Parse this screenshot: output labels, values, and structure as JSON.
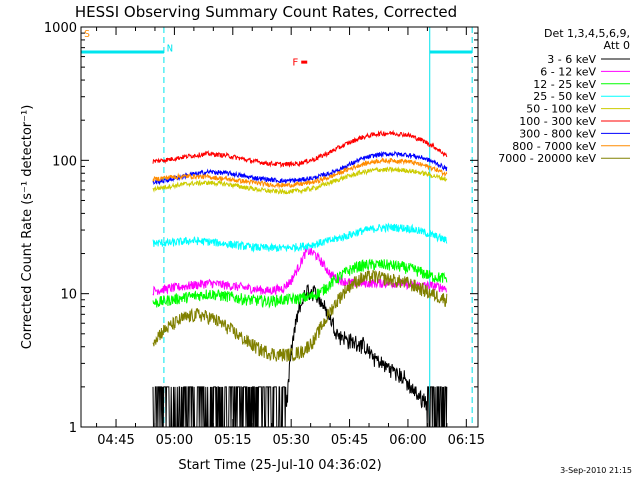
{
  "chart_data": {
    "type": "line",
    "title": "HESSI Observing Summary Count Rates, Corrected",
    "xlabel": "Start Time (25-Jul-10 04:36:02)",
    "ylabel": "Corrected Count Rate (s⁻¹ detector⁻¹)",
    "y_scale": "log",
    "ylim": [
      1,
      1000
    ],
    "xlim_minutes": [
      36.0,
      138.0
    ],
    "x_tick_labels": [
      "04:45",
      "05:00",
      "05:15",
      "05:30",
      "05:45",
      "06:00",
      "06:15"
    ],
    "x_tick_minutes": [
      45,
      60,
      75,
      90,
      105,
      120,
      135
    ],
    "y_tick_labels": [
      "1",
      "10",
      "100",
      "1000"
    ],
    "y_tick_values": [
      1,
      10,
      100,
      1000
    ],
    "data_start_minute": 54.5,
    "data_end_minute": 130.0,
    "legend_header": [
      "Det 1,3,4,5,6,9,",
      "Att 0"
    ],
    "legend_placement": "right",
    "flags": [
      {
        "label": "S",
        "color": "#ff8c00",
        "x_minute": 36.0,
        "level": 900
      },
      {
        "label": "N",
        "color": "#00e5ee",
        "x_minute": 57.3,
        "level": 700
      },
      {
        "label": "F",
        "color": "#ff0000",
        "x_minute": 89.5,
        "level": 550
      }
    ],
    "night_periods": [
      {
        "start_minute": 36.0,
        "end_minute": 57.3,
        "level": 650
      },
      {
        "start_minute": 125.6,
        "end_minute": 136.5,
        "level": 650
      }
    ],
    "night_boundary_lines_minutes": [
      36.0,
      57.3,
      125.6,
      136.5
    ],
    "series": [
      {
        "name": "3 - 6 keV",
        "color": "#000000",
        "x": [
          54.5,
          59,
          64,
          69,
          74,
          79,
          84,
          88,
          89,
          90,
          92,
          94,
          96,
          98,
          100,
          102,
          105,
          108,
          110,
          113,
          116,
          119,
          121,
          124,
          126,
          130
        ],
        "y": [
          1.3,
          1.3,
          1.3,
          1.3,
          1.3,
          1.3,
          1.3,
          1.3,
          1.6,
          3.5,
          7.5,
          10.5,
          10.2,
          8.5,
          6.5,
          5.0,
          4.4,
          4.2,
          3.6,
          3.0,
          2.7,
          2.3,
          1.9,
          1.6,
          1.4,
          1.3
        ]
      },
      {
        "name": "6 - 12 keV",
        "color": "#ff00ff",
        "x": [
          54.5,
          59,
          64,
          69,
          74,
          79,
          84,
          88,
          90,
          92,
          94,
          96,
          98,
          100,
          103,
          106,
          110,
          114,
          118,
          122,
          126,
          130
        ],
        "y": [
          10.5,
          11.0,
          11.5,
          12.0,
          11.5,
          11.0,
          10.5,
          11.0,
          12.5,
          16.0,
          21.0,
          20.0,
          17.0,
          14.0,
          12.5,
          12.0,
          12.0,
          12.0,
          12.0,
          11.5,
          11.5,
          11.0
        ]
      },
      {
        "name": "12 - 25 keV",
        "color": "#00ff00",
        "x": [
          54.5,
          59,
          64,
          69,
          74,
          79,
          84,
          88,
          92,
          95,
          98,
          101,
          104,
          107,
          110,
          114,
          118,
          122,
          126,
          130
        ],
        "y": [
          8.5,
          9.0,
          9.5,
          10.0,
          9.5,
          9.0,
          8.8,
          9.0,
          9.2,
          9.5,
          10.5,
          12.5,
          14.5,
          16.0,
          16.5,
          16.5,
          16.0,
          15.0,
          13.5,
          13.0
        ]
      },
      {
        "name": "25 - 50 keV",
        "color": "#00ffff",
        "x": [
          54.5,
          59,
          64,
          69,
          74,
          79,
          84,
          88,
          92,
          96,
          100,
          104,
          108,
          112,
          116,
          120,
          124,
          127,
          130
        ],
        "y": [
          24,
          24,
          25,
          24.5,
          23.5,
          22.5,
          22,
          22,
          22.5,
          23.5,
          25,
          27,
          29.5,
          31,
          31.5,
          31,
          29,
          27,
          25
        ]
      },
      {
        "name": "50 - 100 keV",
        "color": "#cccc00",
        "x": [
          54.5,
          59,
          64,
          69,
          74,
          79,
          84,
          88,
          92,
          96,
          100,
          104,
          108,
          112,
          116,
          120,
          124,
          127,
          130
        ],
        "y": [
          61,
          64,
          67,
          68,
          66,
          62,
          59,
          58,
          59,
          62,
          68,
          75,
          81,
          85,
          85,
          84,
          80,
          76,
          72
        ]
      },
      {
        "name": "100 - 300 keV",
        "color": "#ff0000",
        "x": [
          54.5,
          59,
          64,
          69,
          74,
          79,
          84,
          88,
          92,
          96,
          100,
          104,
          108,
          112,
          116,
          120,
          124,
          127,
          130
        ],
        "y": [
          98,
          102,
          108,
          112,
          108,
          100,
          95,
          93,
          95,
          102,
          115,
          132,
          148,
          158,
          160,
          155,
          140,
          125,
          108
        ]
      },
      {
        "name": "300 - 800 keV",
        "color": "#0000ff",
        "x": [
          54.5,
          59,
          64,
          69,
          74,
          79,
          84,
          88,
          92,
          96,
          100,
          104,
          108,
          112,
          116,
          120,
          124,
          127,
          130
        ],
        "y": [
          68,
          72,
          78,
          82,
          80,
          75,
          72,
          70,
          71,
          74,
          80,
          90,
          102,
          110,
          112,
          110,
          104,
          96,
          86
        ]
      },
      {
        "name": "800 - 7000 keV",
        "color": "#ff8c00",
        "x": [
          54.5,
          59,
          64,
          69,
          74,
          79,
          84,
          88,
          92,
          96,
          100,
          104,
          108,
          112,
          116,
          120,
          124,
          127,
          130
        ],
        "y": [
          72,
          75,
          76,
          75,
          72,
          69,
          66,
          65,
          66,
          69,
          75,
          84,
          93,
          99,
          100,
          98,
          92,
          86,
          78
        ]
      },
      {
        "name": "7000 - 20000 keV",
        "color": "#808000",
        "x": [
          54.5,
          58,
          62,
          66,
          70,
          74,
          78,
          82,
          86,
          90,
          93,
          96,
          99,
          102,
          105,
          108,
          111,
          114,
          117,
          120,
          123,
          126,
          130
        ],
        "y": [
          4.5,
          5.5,
          6.5,
          7.0,
          6.5,
          5.5,
          4.5,
          3.8,
          3.5,
          3.5,
          3.7,
          4.5,
          6.5,
          9.0,
          11.5,
          13.0,
          13.5,
          13.0,
          12.5,
          12.0,
          11.0,
          10.0,
          9.0
        ]
      }
    ],
    "footer_date": "3-Sep-2010 21:15"
  }
}
